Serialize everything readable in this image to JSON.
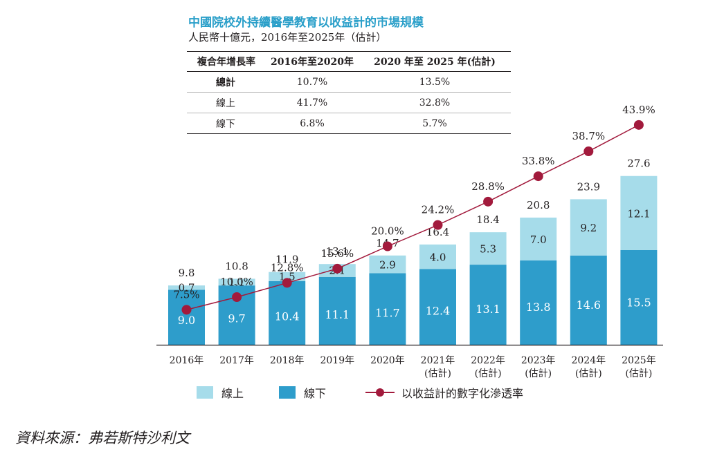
{
  "title": "中國院校外持續醫學教育以收益計的市場規模",
  "subtitle": "人民幣十億元，2016年至2025年（估計）",
  "cagr_table": {
    "headers": [
      "複合年增長率",
      "2016年至2020年",
      "2020 年至 2025 年(估計)"
    ],
    "rows": [
      {
        "label": "總計",
        "a": "10.7%",
        "b": "13.5%"
      },
      {
        "label": "線上",
        "a": "41.7%",
        "b": "32.8%"
      },
      {
        "label": "線下",
        "a": "6.8%",
        "b": "5.7%"
      }
    ]
  },
  "colors": {
    "online": "#a6dcea",
    "offline": "#2e9dcb",
    "line": "#a21a3c",
    "axis": "#231f20"
  },
  "chart_data": {
    "type": "bar",
    "stacked": true,
    "categories": [
      "2016年",
      "2017年",
      "2018年",
      "2019年",
      "2020年",
      "2021年\n(估計)",
      "2022年\n(估計)",
      "2023年\n(估計)",
      "2024年\n(估計)",
      "2025年\n(估計)"
    ],
    "series": [
      {
        "name": "線下",
        "values": [
          9.0,
          9.7,
          10.4,
          11.1,
          11.7,
          12.4,
          13.1,
          13.8,
          14.6,
          15.5
        ],
        "labels": [
          "9.0",
          "9.7",
          "10.4",
          "11.1",
          "11.7",
          "12.4",
          "13.1",
          "13.8",
          "14.6",
          "15.5"
        ]
      },
      {
        "name": "線上",
        "values": [
          0.7,
          1.1,
          1.5,
          2.1,
          2.9,
          4.0,
          5.3,
          7.0,
          9.2,
          12.1
        ],
        "labels": [
          "0.7",
          "1.1",
          "1.5",
          "2.1",
          "2.9",
          "4.0",
          "5.3",
          "7.0",
          "9.2",
          "12.1"
        ]
      }
    ],
    "totals": [
      "9.8",
      "10.8",
      "11.9",
      "13.1",
      "14.7",
      "16.4",
      "18.4",
      "20.8",
      "23.9",
      "27.6"
    ],
    "line_series": {
      "name": "以收益計的數字化滲透率",
      "values": [
        7.5,
        10.0,
        12.8,
        15.6,
        20.0,
        24.2,
        28.8,
        33.8,
        38.7,
        43.9
      ],
      "labels": [
        "7.5%",
        "10.0%",
        "12.8%",
        "15.6%",
        "20.0%",
        "24.2%",
        "28.8%",
        "33.8%",
        "38.7%",
        "43.9%"
      ]
    },
    "ylim": [
      0,
      30
    ],
    "line_ylim": [
      0,
      60
    ],
    "legend_position": "bottom"
  },
  "legend": {
    "online": "線上",
    "offline": "線下",
    "line": "以收益計的數字化滲透率"
  },
  "source": "資料來源：弗若斯特沙利文"
}
